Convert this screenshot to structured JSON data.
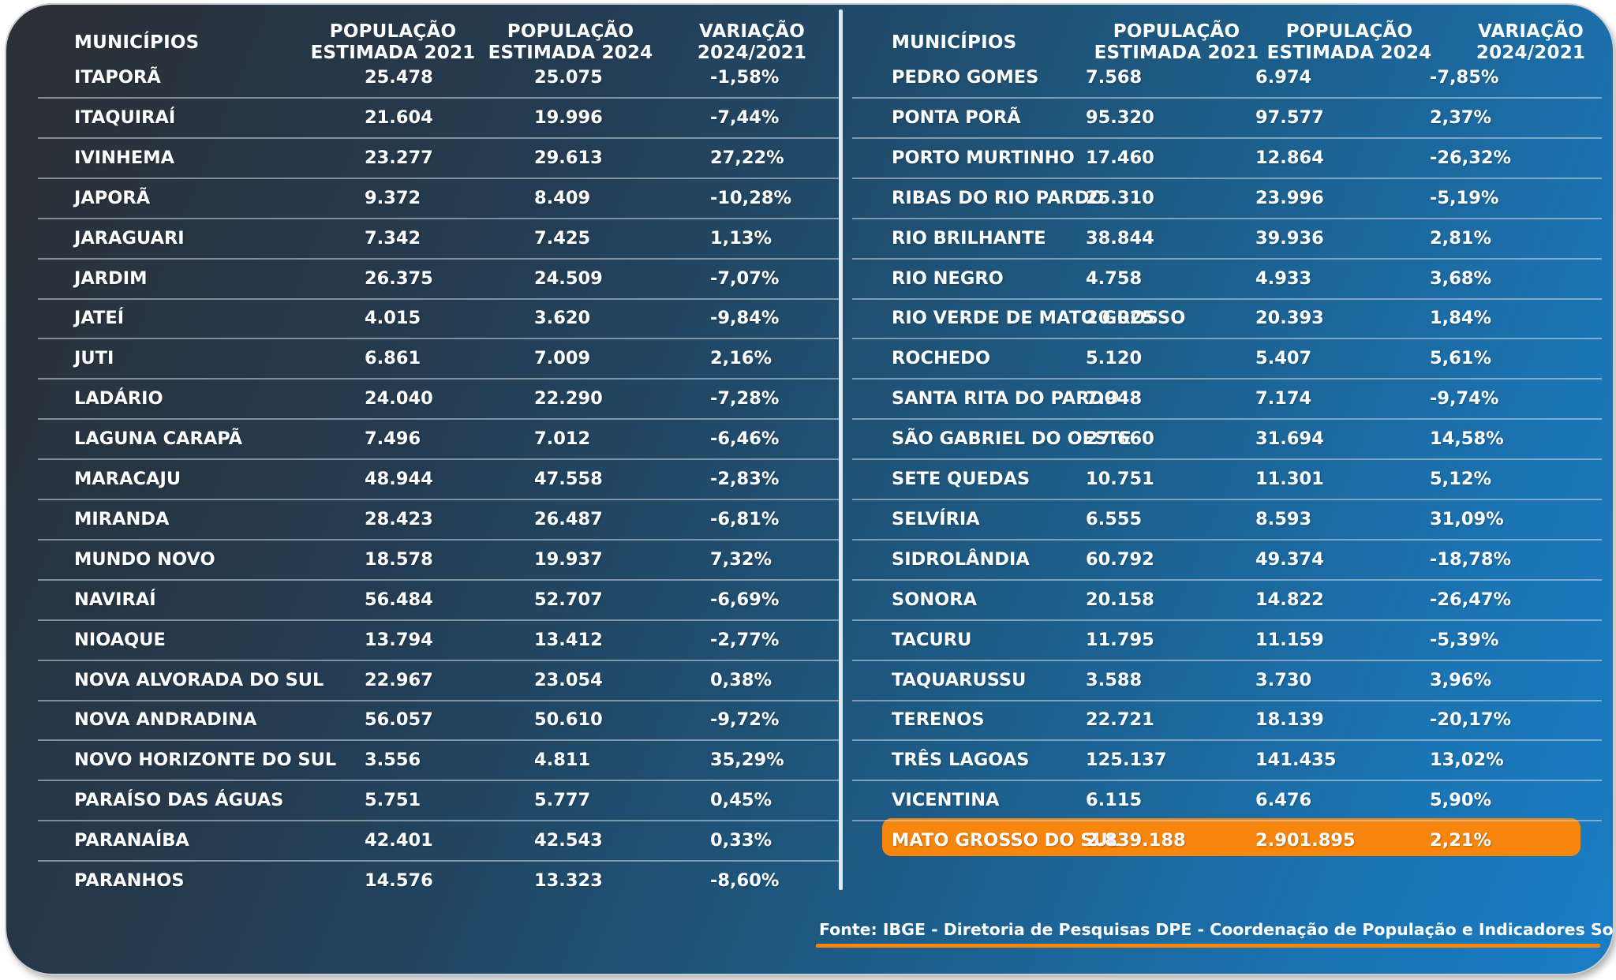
{
  "headers": {
    "municipio": "MUNICÍPIOS",
    "pop2021": [
      "POPULAÇÃO",
      "ESTIMADA 2021"
    ],
    "pop2024": [
      "POPULAÇÃO",
      "ESTIMADA 2024"
    ],
    "variacao": [
      "VARIAÇÃO",
      "2024/2021"
    ]
  },
  "left_rows": [
    [
      "ITAPORÃ",
      "25.478",
      "25.075",
      "-1,58%"
    ],
    [
      "ITAQUIRAÍ",
      "21.604",
      "19.996",
      "-7,44%"
    ],
    [
      "IVINHEMA",
      "23.277",
      "29.613",
      "27,22%"
    ],
    [
      "JAPORÃ",
      "9.372",
      "8.409",
      "-10,28%"
    ],
    [
      "JARAGUARI",
      "7.342",
      "7.425",
      "1,13%"
    ],
    [
      "JARDIM",
      "26.375",
      "24.509",
      "-7,07%"
    ],
    [
      "JATEÍ",
      "4.015",
      "3.620",
      "-9,84%"
    ],
    [
      "JUTI",
      "6.861",
      "7.009",
      "2,16%"
    ],
    [
      "LADÁRIO",
      "24.040",
      "22.290",
      "-7,28%"
    ],
    [
      "LAGUNA CARAPÃ",
      "7.496",
      "7.012",
      "-6,46%"
    ],
    [
      "MARACAJU",
      "48.944",
      "47.558",
      "-2,83%"
    ],
    [
      "MIRANDA",
      "28.423",
      "26.487",
      "-6,81%"
    ],
    [
      "MUNDO NOVO",
      "18.578",
      "19.937",
      "7,32%"
    ],
    [
      "NAVIRAÍ",
      "56.484",
      "52.707",
      "-6,69%"
    ],
    [
      "NIOAQUE",
      "13.794",
      "13.412",
      "-2,77%"
    ],
    [
      "NOVA ALVORADA DO SUL",
      "22.967",
      "23.054",
      "0,38%"
    ],
    [
      "NOVA ANDRADINA",
      "56.057",
      "50.610",
      "-9,72%"
    ],
    [
      "NOVO HORIZONTE DO SUL",
      "3.556",
      "4.811",
      "35,29%"
    ],
    [
      "PARAÍSO DAS ÁGUAS",
      "5.751",
      "5.777",
      "0,45%"
    ],
    [
      "PARANAÍBA",
      "42.401",
      "42.543",
      "0,33%"
    ],
    [
      "PARANHOS",
      "14.576",
      "13.323",
      "-8,60%"
    ]
  ],
  "right_rows": [
    [
      "PEDRO GOMES",
      "7.568",
      "6.974",
      "-7,85%"
    ],
    [
      "PONTA PORÃ",
      "95.320",
      "97.577",
      "2,37%"
    ],
    [
      "PORTO MURTINHO",
      "17.460",
      "12.864",
      "-26,32%"
    ],
    [
      "RIBAS DO RIO PARDO",
      "25.310",
      "23.996",
      "-5,19%"
    ],
    [
      "RIO BRILHANTE",
      "38.844",
      "39.936",
      "2,81%"
    ],
    [
      "RIO NEGRO",
      "4.758",
      "4.933",
      "3,68%"
    ],
    [
      "RIO VERDE DE MATO GROSSO",
      "20.025",
      "20.393",
      "1,84%"
    ],
    [
      "ROCHEDO",
      "5.120",
      "5.407",
      "5,61%"
    ],
    [
      "SANTA RITA DO PARDO",
      "7.948",
      "7.174",
      "-9,74%"
    ],
    [
      "SÃO GABRIEL DO OESTE",
      "27.660",
      "31.694",
      "14,58%"
    ],
    [
      "SETE QUEDAS",
      "10.751",
      "11.301",
      "5,12%"
    ],
    [
      "SELVÍRIA",
      "6.555",
      "8.593",
      "31,09%"
    ],
    [
      "SIDROLÂNDIA",
      "60.792",
      "49.374",
      "-18,78%"
    ],
    [
      "SONORA",
      "20.158",
      "14.822",
      "-26,47%"
    ],
    [
      "TACURU",
      "11.795",
      "11.159",
      "-5,39%"
    ],
    [
      "TAQUARUSSU",
      "3.588",
      "3.730",
      "3,96%"
    ],
    [
      "TERENOS",
      "22.721",
      "18.139",
      "-20,17%"
    ],
    [
      "TRÊS LAGOAS",
      "125.137",
      "141.435",
      "13,02%"
    ],
    [
      "VICENTINA",
      "6.115",
      "6.476",
      "5,90%"
    ]
  ],
  "total_row": [
    "MATO GROSSO DO SUL",
    "2.839.188",
    "2.901.895",
    "2,21%"
  ],
  "source": "Fonte: IBGE - Diretoria de Pesquisas DPE - Coordenação de População e Indicadores Sociais - COPIS",
  "colors": {
    "highlight": "#f7860f",
    "text": "#ffffff",
    "background_start": "#2b2f35",
    "background_end": "#1a7dc4"
  }
}
